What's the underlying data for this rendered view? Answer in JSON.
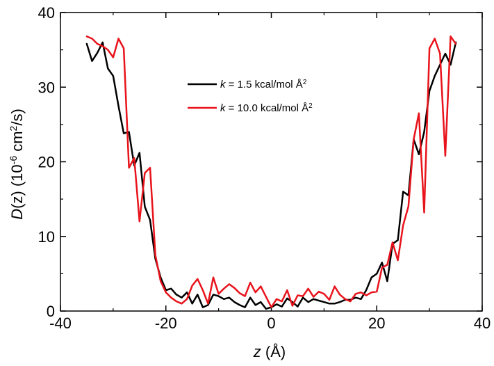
{
  "chart_data": {
    "type": "line",
    "xlabel": "z (Å)",
    "ylabel": "D(z) (10⁻⁶ cm²/s)",
    "xlim": [
      -40,
      40
    ],
    "ylim": [
      0,
      40
    ],
    "xticks": [
      -40,
      -20,
      0,
      20,
      40
    ],
    "yticks": [
      0,
      10,
      20,
      30,
      40
    ],
    "xtick_labels": [
      "-40",
      "-20",
      "0",
      "20",
      "40"
    ],
    "ytick_labels": [
      "0",
      "10",
      "20",
      "30",
      "40"
    ],
    "grid": false,
    "legend_position": "upper-center",
    "series": [
      {
        "name": "k = 1.5 kcal/mol Å²",
        "color": "#000000",
        "x": [
          -35,
          -34,
          -33,
          -32,
          -31,
          -30,
          -29,
          -28,
          -27,
          -26,
          -25,
          -24,
          -23,
          -22,
          -21,
          -20,
          -19,
          -18,
          -17,
          -16,
          -15,
          -14,
          -13,
          -12,
          -11,
          -10,
          -9,
          -8,
          -7,
          -6,
          -5,
          -4,
          -3,
          -2,
          -1,
          0,
          1,
          2,
          3,
          4,
          5,
          6,
          7,
          8,
          9,
          10,
          11,
          12,
          13,
          14,
          15,
          16,
          17,
          18,
          19,
          20,
          21,
          22,
          23,
          24,
          25,
          26,
          27,
          28,
          29,
          30,
          31,
          32,
          33,
          34,
          35
        ],
        "y": [
          35.8,
          33.5,
          34.6,
          36.0,
          32.5,
          31.5,
          27.5,
          23.8,
          24.0,
          19.5,
          21.2,
          14.0,
          12.2,
          7.0,
          4.5,
          2.8,
          3.0,
          2.2,
          1.8,
          2.5,
          1.0,
          2.2,
          0.5,
          0.8,
          2.2,
          2.0,
          1.6,
          1.8,
          1.2,
          0.8,
          0.5,
          1.8,
          0.8,
          1.2,
          0.3,
          0.5,
          0.9,
          0.6,
          1.7,
          1.2,
          0.6,
          1.8,
          1.2,
          1.6,
          1.4,
          1.2,
          1.0,
          1.0,
          1.2,
          1.5,
          1.5,
          1.8,
          1.6,
          2.8,
          4.5,
          5.0,
          6.5,
          4.0,
          9.0,
          9.5,
          16.0,
          15.5,
          23.0,
          21.0,
          24.0,
          29.5,
          31.5,
          33.0,
          34.5,
          33.0,
          36.0
        ]
      },
      {
        "name": "k = 10.0 kcal/mol Å²",
        "color": "#e8131b",
        "x": [
          -35,
          -34,
          -33,
          -32,
          -31,
          -30,
          -29,
          -28,
          -27,
          -26,
          -25,
          -24,
          -23,
          -22,
          -21,
          -20,
          -19,
          -18,
          -17,
          -16,
          -15,
          -14,
          -13,
          -12,
          -11,
          -10,
          -9,
          -8,
          -7,
          -6,
          -5,
          -4,
          -3,
          -2,
          -1,
          0,
          1,
          2,
          3,
          4,
          5,
          6,
          7,
          8,
          9,
          10,
          11,
          12,
          13,
          14,
          15,
          16,
          17,
          18,
          19,
          20,
          21,
          22,
          23,
          24,
          25,
          26,
          27,
          28,
          29,
          30,
          31,
          32,
          33,
          34,
          35
        ],
        "y": [
          36.8,
          36.5,
          35.8,
          35.5,
          35.0,
          34.0,
          36.5,
          35.2,
          19.2,
          20.5,
          12.0,
          18.5,
          19.2,
          7.5,
          4.0,
          2.5,
          1.8,
          1.3,
          1.0,
          1.6,
          3.4,
          4.3,
          2.8,
          1.0,
          4.5,
          2.3,
          3.0,
          3.6,
          3.1,
          2.4,
          2.0,
          3.8,
          2.5,
          3.3,
          1.9,
          0.5,
          1.6,
          1.3,
          2.8,
          0.7,
          2.1,
          2.0,
          3.0,
          1.9,
          2.6,
          2.3,
          1.5,
          3.3,
          2.2,
          1.6,
          1.3,
          2.3,
          2.5,
          2.1,
          2.5,
          2.6,
          5.8,
          6.2,
          9.2,
          6.8,
          11.5,
          14.0,
          23.0,
          26.5,
          13.2,
          35.2,
          36.5,
          34.5,
          20.8,
          36.8,
          35.8
        ]
      }
    ]
  }
}
